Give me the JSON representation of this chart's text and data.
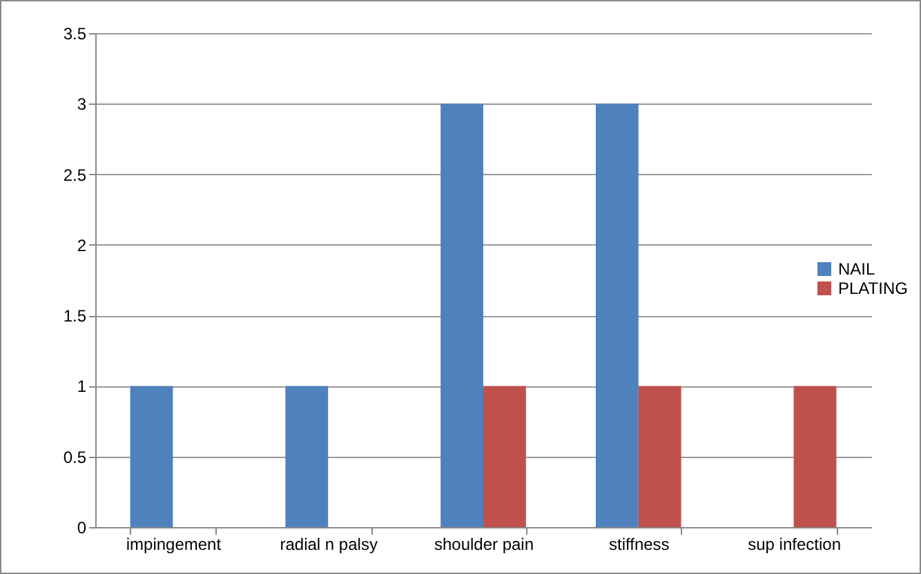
{
  "chart_data": {
    "type": "bar",
    "categories": [
      "impingement",
      "radial n palsy",
      "shoulder pain",
      "stiffness",
      "sup infection"
    ],
    "series": [
      {
        "name": "NAIL",
        "color": "#4f81bd",
        "values": [
          1,
          1,
          3,
          3,
          null
        ]
      },
      {
        "name": "PLATING",
        "color": "#c0504d",
        "values": [
          null,
          null,
          1,
          1,
          1
        ]
      }
    ],
    "ylim": [
      0,
      3.5
    ],
    "yticks": [
      0,
      0.5,
      1,
      1.5,
      2,
      2.5,
      3,
      3.5
    ],
    "grid": "y",
    "legend": "right"
  }
}
